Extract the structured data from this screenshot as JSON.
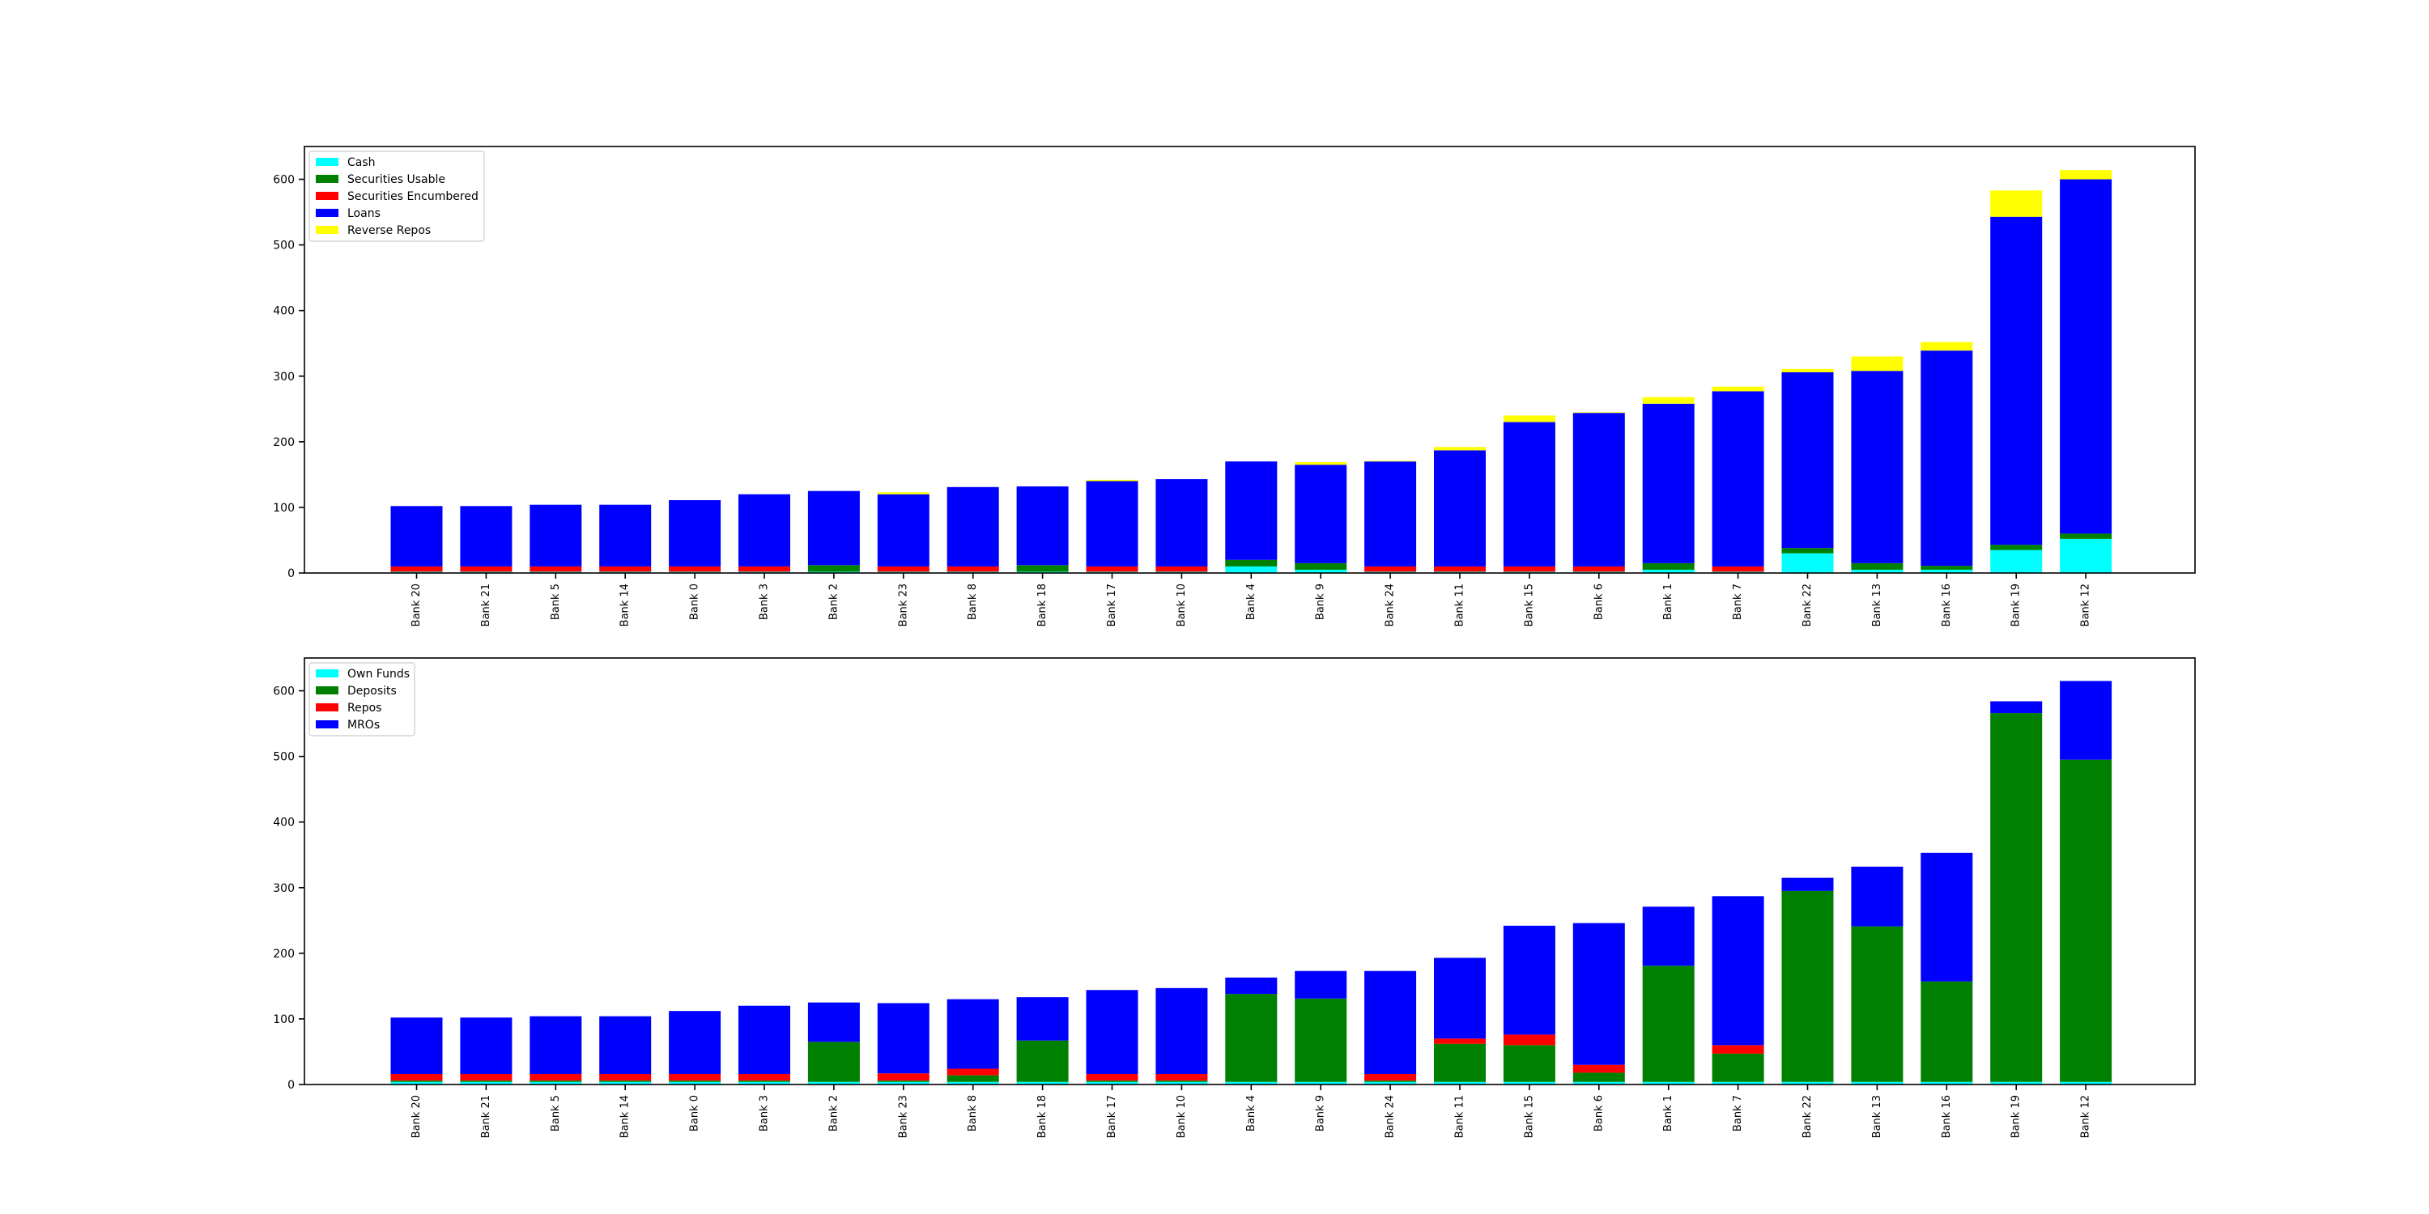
{
  "chart_data": [
    {
      "type": "bar",
      "stacked": true,
      "categories": [
        "Bank 20",
        "Bank 21",
        "Bank 5",
        "Bank 14",
        "Bank 0",
        "Bank 3",
        "Bank 2",
        "Bank 23",
        "Bank 8",
        "Bank 18",
        "Bank 17",
        "Bank 10",
        "Bank 4",
        "Bank 9",
        "Bank 24",
        "Bank 11",
        "Bank 15",
        "Bank 6",
        "Bank 1",
        "Bank 7",
        "Bank 22",
        "Bank 13",
        "Bank 16",
        "Bank 19",
        "Bank 12"
      ],
      "ylim": [
        0,
        650
      ],
      "yticks": [
        0,
        100,
        200,
        300,
        400,
        500,
        600
      ],
      "legend_position": "top-left",
      "series": [
        {
          "name": "Cash",
          "color": "#00ffff",
          "values": [
            2,
            2,
            2,
            2,
            2,
            2,
            2,
            2,
            2,
            2,
            2,
            2,
            10,
            5,
            2,
            2,
            2,
            2,
            5,
            2,
            30,
            5,
            5,
            35,
            52
          ]
        },
        {
          "name": "Securities Usable",
          "color": "#008000",
          "values": [
            0,
            0,
            0,
            0,
            0,
            0,
            10,
            0,
            0,
            10,
            0,
            0,
            10,
            10,
            0,
            0,
            0,
            0,
            10,
            0,
            8,
            10,
            6,
            8,
            8
          ]
        },
        {
          "name": "Securities Encumbered",
          "color": "#ff0000",
          "values": [
            8,
            8,
            8,
            8,
            8,
            8,
            0,
            8,
            8,
            0,
            8,
            8,
            0,
            0,
            8,
            8,
            8,
            8,
            0,
            8,
            0,
            0,
            0,
            0,
            0
          ]
        },
        {
          "name": "Loans",
          "color": "#0000ff",
          "values": [
            92,
            92,
            94,
            94,
            101,
            110,
            113,
            110,
            121,
            120,
            130,
            133,
            150,
            150,
            160,
            177,
            220,
            234,
            243,
            267,
            268,
            293,
            328,
            500,
            540
          ]
        },
        {
          "name": "Reverse Repos",
          "color": "#ffff00",
          "values": [
            0,
            0,
            0,
            0,
            0,
            0,
            0,
            3,
            0,
            0,
            2,
            0,
            0,
            4,
            1,
            5,
            10,
            1,
            10,
            7,
            5,
            22,
            13,
            40,
            14
          ]
        }
      ]
    },
    {
      "type": "bar",
      "stacked": true,
      "categories": [
        "Bank 20",
        "Bank 21",
        "Bank 5",
        "Bank 14",
        "Bank 0",
        "Bank 3",
        "Bank 2",
        "Bank 23",
        "Bank 8",
        "Bank 18",
        "Bank 17",
        "Bank 10",
        "Bank 4",
        "Bank 9",
        "Bank 24",
        "Bank 11",
        "Bank 15",
        "Bank 6",
        "Bank 1",
        "Bank 7",
        "Bank 22",
        "Bank 13",
        "Bank 16",
        "Bank 19",
        "Bank 12"
      ],
      "ylim": [
        0,
        650
      ],
      "yticks": [
        0,
        100,
        200,
        300,
        400,
        500,
        600
      ],
      "legend_position": "top-left",
      "series": [
        {
          "name": "Own Funds",
          "color": "#00ffff",
          "values": [
            4,
            4,
            4,
            4,
            4,
            4,
            4,
            4,
            4,
            4,
            4,
            4,
            4,
            4,
            4,
            4,
            4,
            4,
            4,
            4,
            4,
            4,
            4,
            4,
            4
          ]
        },
        {
          "name": "Deposits",
          "color": "#008000",
          "values": [
            2,
            2,
            2,
            2,
            2,
            2,
            61,
            2,
            10,
            63,
            2,
            2,
            134,
            127,
            2,
            58,
            56,
            14,
            177,
            43,
            291,
            237,
            153,
            562,
            491
          ]
        },
        {
          "name": "Repos",
          "color": "#ff0000",
          "values": [
            10,
            10,
            10,
            10,
            10,
            10,
            0,
            11,
            10,
            0,
            10,
            10,
            0,
            0,
            10,
            8,
            16,
            12,
            0,
            13,
            0,
            0,
            0,
            0,
            0
          ]
        },
        {
          "name": "MROs",
          "color": "#0000ff",
          "values": [
            86,
            86,
            88,
            88,
            96,
            104,
            60,
            107,
            106,
            66,
            128,
            131,
            25,
            42,
            157,
            123,
            166,
            216,
            90,
            227,
            20,
            91,
            196,
            18,
            120
          ]
        }
      ]
    }
  ]
}
